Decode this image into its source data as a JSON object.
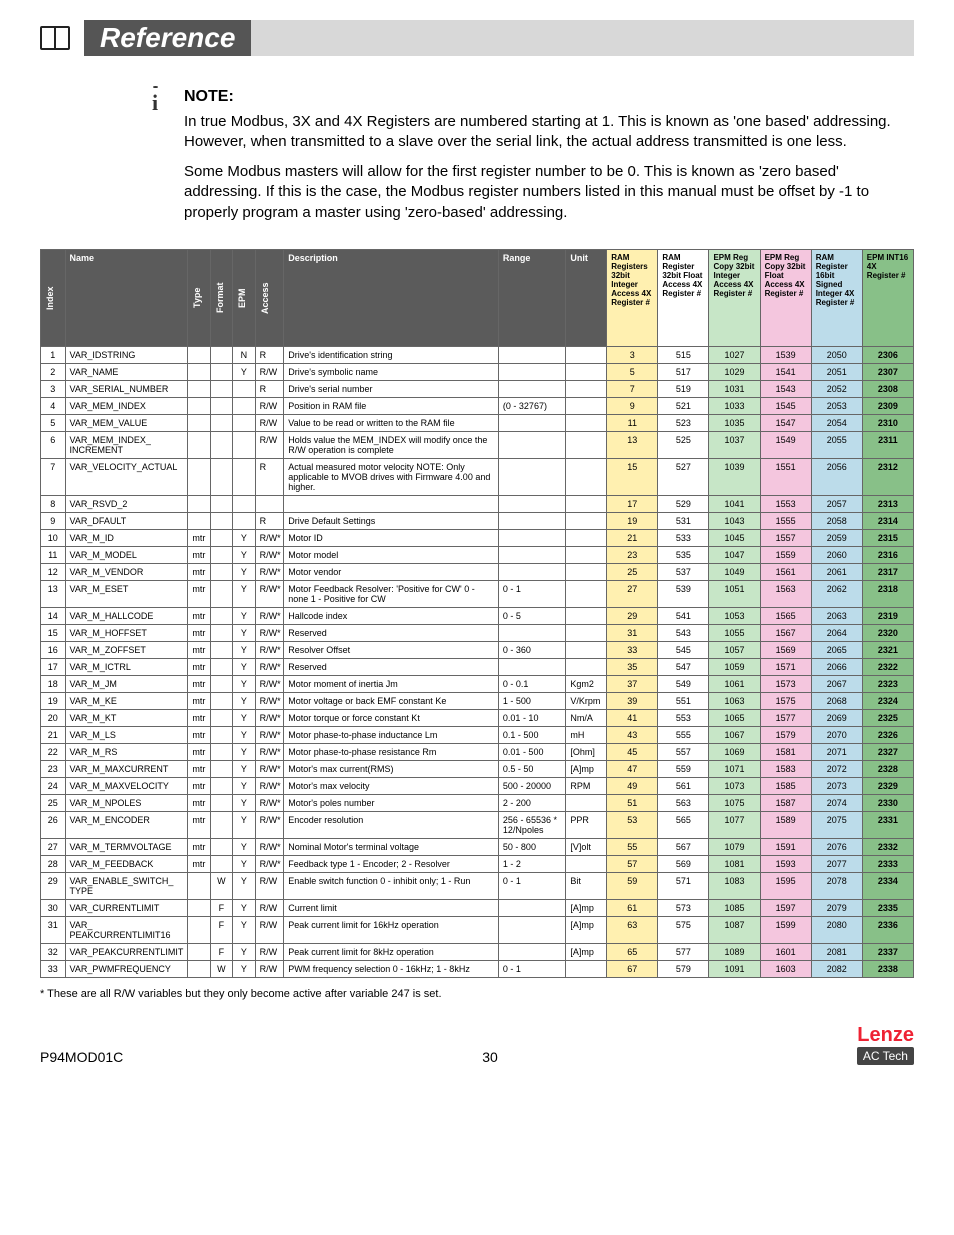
{
  "header": {
    "title": "Reference"
  },
  "note": {
    "label": "NOTE:",
    "p1": "In true Modbus, 3X and 4X Registers are numbered starting at 1. This is known as 'one based' addressing. However, when transmitted to a slave over the serial link, the actual address transmitted is one less.",
    "p2": "Some Modbus masters will allow for the first register number to be 0. This is known as 'zero based' addressing. If this is the case, the Modbus register numbers listed in this manual must be offset by -1 to properly program a master using 'zero-based' addressing."
  },
  "columns": {
    "index": "Index",
    "name": "Name",
    "type": "Type",
    "format": "Format",
    "epm": "EPM",
    "access": "Access",
    "desc": "Description",
    "range": "Range",
    "unit": "Unit",
    "r1": "RAM Registers 32bit Integer Access 4X Register #",
    "r2": "RAM Register 32bit Float Access 4X Register #",
    "r3": "EPM Reg Copy 32bit Integer Access 4X Register #",
    "r4": "EPM Reg Copy 32bit Float Access 4X Register #",
    "r5": "RAM Register 16bit Signed Integer 4X Register #",
    "r6": "EPM INT16 4X Register #"
  },
  "colors": {
    "header_bg": "#5b5b5b",
    "header_fg": "#ffffff",
    "ram_int": "#fff0b0",
    "ram_float": "#ffffff",
    "epm_int": "#c7e6c7",
    "epm_float": "#f4c6de",
    "ram16": "#bcdcea",
    "epm16": "#88c088"
  },
  "rows": [
    {
      "i": "1",
      "name": "VAR_IDSTRING",
      "type": "",
      "fmt": "",
      "epm": "N",
      "acc": "R",
      "desc": "Drive's identification string",
      "range": "",
      "unit": "",
      "r1": "3",
      "r2": "515",
      "r3": "1027",
      "r4": "1539",
      "r5": "2050",
      "r6": "2306"
    },
    {
      "i": "2",
      "name": "VAR_NAME",
      "type": "",
      "fmt": "",
      "epm": "Y",
      "acc": "R/W",
      "desc": "Drive's symbolic name",
      "range": "",
      "unit": "",
      "r1": "5",
      "r2": "517",
      "r3": "1029",
      "r4": "1541",
      "r5": "2051",
      "r6": "2307"
    },
    {
      "i": "3",
      "name": "VAR_SERIAL_NUMBER",
      "type": "",
      "fmt": "",
      "epm": "",
      "acc": "R",
      "desc": "Drive's serial number",
      "range": "",
      "unit": "",
      "r1": "7",
      "r2": "519",
      "r3": "1031",
      "r4": "1543",
      "r5": "2052",
      "r6": "2308"
    },
    {
      "i": "4",
      "name": "VAR_MEM_INDEX",
      "type": "",
      "fmt": "",
      "epm": "",
      "acc": "R/W",
      "desc": "Position in RAM file",
      "range": "(0 - 32767)",
      "unit": "",
      "r1": "9",
      "r2": "521",
      "r3": "1033",
      "r4": "1545",
      "r5": "2053",
      "r6": "2309"
    },
    {
      "i": "5",
      "name": "VAR_MEM_VALUE",
      "type": "",
      "fmt": "",
      "epm": "",
      "acc": "R/W",
      "desc": "Value to be read or written to the RAM file",
      "range": "",
      "unit": "",
      "r1": "11",
      "r2": "523",
      "r3": "1035",
      "r4": "1547",
      "r5": "2054",
      "r6": "2310"
    },
    {
      "i": "6",
      "name": "VAR_MEM_INDEX_ INCREMENT",
      "type": "",
      "fmt": "",
      "epm": "",
      "acc": "R/W",
      "desc": "Holds value the MEM_INDEX will modify once the R/W operation is complete",
      "range": "",
      "unit": "",
      "r1": "13",
      "r2": "525",
      "r3": "1037",
      "r4": "1549",
      "r5": "2055",
      "r6": "2311"
    },
    {
      "i": "7",
      "name": "VAR_VELOCITY_ACTUAL",
      "type": "",
      "fmt": "",
      "epm": "",
      "acc": "R",
      "desc": "Actual measured motor velocity NOTE: Only applicable to MVOB drives with Firmware 4.00 and higher.",
      "range": "",
      "unit": "",
      "r1": "15",
      "r2": "527",
      "r3": "1039",
      "r4": "1551",
      "r5": "2056",
      "r6": "2312"
    },
    {
      "i": "8",
      "name": "VAR_RSVD_2",
      "type": "",
      "fmt": "",
      "epm": "",
      "acc": "",
      "desc": "",
      "range": "",
      "unit": "",
      "r1": "17",
      "r2": "529",
      "r3": "1041",
      "r4": "1553",
      "r5": "2057",
      "r6": "2313"
    },
    {
      "i": "9",
      "name": "VAR_DFAULT",
      "type": "",
      "fmt": "",
      "epm": "",
      "acc": "R",
      "desc": "Drive Default Settings",
      "range": "",
      "unit": "",
      "r1": "19",
      "r2": "531",
      "r3": "1043",
      "r4": "1555",
      "r5": "2058",
      "r6": "2314"
    },
    {
      "i": "10",
      "name": "VAR_M_ID",
      "type": "mtr",
      "fmt": "",
      "epm": "Y",
      "acc": "R/W*",
      "desc": "Motor ID",
      "range": "",
      "unit": "",
      "r1": "21",
      "r2": "533",
      "r3": "1045",
      "r4": "1557",
      "r5": "2059",
      "r6": "2315"
    },
    {
      "i": "11",
      "name": "VAR_M_MODEL",
      "type": "mtr",
      "fmt": "",
      "epm": "Y",
      "acc": "R/W*",
      "desc": "Motor model",
      "range": "",
      "unit": "",
      "r1": "23",
      "r2": "535",
      "r3": "1047",
      "r4": "1559",
      "r5": "2060",
      "r6": "2316"
    },
    {
      "i": "12",
      "name": "VAR_M_VENDOR",
      "type": "mtr",
      "fmt": "",
      "epm": "Y",
      "acc": "R/W*",
      "desc": "Motor vendor",
      "range": "",
      "unit": "",
      "r1": "25",
      "r2": "537",
      "r3": "1049",
      "r4": "1561",
      "r5": "2061",
      "r6": "2317"
    },
    {
      "i": "13",
      "name": "VAR_M_ESET",
      "type": "mtr",
      "fmt": "",
      "epm": "Y",
      "acc": "R/W*",
      "desc": "Motor Feedback Resolver: 'Positive for CW' 0 - none 1 - Positive for CW",
      "range": "0 - 1",
      "unit": "",
      "r1": "27",
      "r2": "539",
      "r3": "1051",
      "r4": "1563",
      "r5": "2062",
      "r6": "2318"
    },
    {
      "i": "14",
      "name": "VAR_M_HALLCODE",
      "type": "mtr",
      "fmt": "",
      "epm": "Y",
      "acc": "R/W*",
      "desc": "Hallcode index",
      "range": "0 - 5",
      "unit": "",
      "r1": "29",
      "r2": "541",
      "r3": "1053",
      "r4": "1565",
      "r5": "2063",
      "r6": "2319"
    },
    {
      "i": "15",
      "name": "VAR_M_HOFFSET",
      "type": "mtr",
      "fmt": "",
      "epm": "Y",
      "acc": "R/W*",
      "desc": "Reserved",
      "range": "",
      "unit": "",
      "r1": "31",
      "r2": "543",
      "r3": "1055",
      "r4": "1567",
      "r5": "2064",
      "r6": "2320"
    },
    {
      "i": "16",
      "name": "VAR_M_ZOFFSET",
      "type": "mtr",
      "fmt": "",
      "epm": "Y",
      "acc": "R/W*",
      "desc": "Resolver Offset",
      "range": "0 - 360",
      "unit": "",
      "r1": "33",
      "r2": "545",
      "r3": "1057",
      "r4": "1569",
      "r5": "2065",
      "r6": "2321"
    },
    {
      "i": "17",
      "name": "VAR_M_ICTRL",
      "type": "mtr",
      "fmt": "",
      "epm": "Y",
      "acc": "R/W*",
      "desc": "Reserved",
      "range": "",
      "unit": "",
      "r1": "35",
      "r2": "547",
      "r3": "1059",
      "r4": "1571",
      "r5": "2066",
      "r6": "2322"
    },
    {
      "i": "18",
      "name": "VAR_M_JM",
      "type": "mtr",
      "fmt": "",
      "epm": "Y",
      "acc": "R/W*",
      "desc": "Motor moment of inertia Jm",
      "range": "0 - 0.1",
      "unit": "Kgm2",
      "r1": "37",
      "r2": "549",
      "r3": "1061",
      "r4": "1573",
      "r5": "2067",
      "r6": "2323"
    },
    {
      "i": "19",
      "name": "VAR_M_KE",
      "type": "mtr",
      "fmt": "",
      "epm": "Y",
      "acc": "R/W*",
      "desc": "Motor voltage or back EMF constant Ke",
      "range": "1 - 500",
      "unit": "V/Krpm",
      "r1": "39",
      "r2": "551",
      "r3": "1063",
      "r4": "1575",
      "r5": "2068",
      "r6": "2324"
    },
    {
      "i": "20",
      "name": "VAR_M_KT",
      "type": "mtr",
      "fmt": "",
      "epm": "Y",
      "acc": "R/W*",
      "desc": "Motor torque or force constant Kt",
      "range": "0.01 - 10",
      "unit": "Nm/A",
      "r1": "41",
      "r2": "553",
      "r3": "1065",
      "r4": "1577",
      "r5": "2069",
      "r6": "2325"
    },
    {
      "i": "21",
      "name": "VAR_M_LS",
      "type": "mtr",
      "fmt": "",
      "epm": "Y",
      "acc": "R/W*",
      "desc": "Motor phase-to-phase inductance Lm",
      "range": "0.1 - 500",
      "unit": "mH",
      "r1": "43",
      "r2": "555",
      "r3": "1067",
      "r4": "1579",
      "r5": "2070",
      "r6": "2326"
    },
    {
      "i": "22",
      "name": "VAR_M_RS",
      "type": "mtr",
      "fmt": "",
      "epm": "Y",
      "acc": "R/W*",
      "desc": "Motor phase-to-phase resistance Rm",
      "range": "0.01 - 500",
      "unit": "[Ohm]",
      "r1": "45",
      "r2": "557",
      "r3": "1069",
      "r4": "1581",
      "r5": "2071",
      "r6": "2327"
    },
    {
      "i": "23",
      "name": "VAR_M_MAXCURRENT",
      "type": "mtr",
      "fmt": "",
      "epm": "Y",
      "acc": "R/W*",
      "desc": "Motor's max current(RMS)",
      "range": "0.5 - 50",
      "unit": "[A]mp",
      "r1": "47",
      "r2": "559",
      "r3": "1071",
      "r4": "1583",
      "r5": "2072",
      "r6": "2328"
    },
    {
      "i": "24",
      "name": "VAR_M_MAXVELOCITY",
      "type": "mtr",
      "fmt": "",
      "epm": "Y",
      "acc": "R/W*",
      "desc": "Motor's max velocity",
      "range": "500 - 20000",
      "unit": "RPM",
      "r1": "49",
      "r2": "561",
      "r3": "1073",
      "r4": "1585",
      "r5": "2073",
      "r6": "2329"
    },
    {
      "i": "25",
      "name": "VAR_M_NPOLES",
      "type": "mtr",
      "fmt": "",
      "epm": "Y",
      "acc": "R/W*",
      "desc": "Motor's poles number",
      "range": "2 - 200",
      "unit": "",
      "r1": "51",
      "r2": "563",
      "r3": "1075",
      "r4": "1587",
      "r5": "2074",
      "r6": "2330"
    },
    {
      "i": "26",
      "name": "VAR_M_ENCODER",
      "type": "mtr",
      "fmt": "",
      "epm": "Y",
      "acc": "R/W*",
      "desc": "Encoder resolution",
      "range": "256 - 65536 * 12/Npoles",
      "unit": "PPR",
      "r1": "53",
      "r2": "565",
      "r3": "1077",
      "r4": "1589",
      "r5": "2075",
      "r6": "2331"
    },
    {
      "i": "27",
      "name": "VAR_M_TERMVOLTAGE",
      "type": "mtr",
      "fmt": "",
      "epm": "Y",
      "acc": "R/W*",
      "desc": "Nominal Motor's terminal voltage",
      "range": "50 - 800",
      "unit": "[V]olt",
      "r1": "55",
      "r2": "567",
      "r3": "1079",
      "r4": "1591",
      "r5": "2076",
      "r6": "2332"
    },
    {
      "i": "28",
      "name": "VAR_M_FEEDBACK",
      "type": "mtr",
      "fmt": "",
      "epm": "Y",
      "acc": "R/W*",
      "desc": "Feedback type 1 - Encoder; 2 - Resolver",
      "range": "1 - 2",
      "unit": "",
      "r1": "57",
      "r2": "569",
      "r3": "1081",
      "r4": "1593",
      "r5": "2077",
      "r6": "2333"
    },
    {
      "i": "29",
      "name": "VAR_ENABLE_SWITCH_ TYPE",
      "type": "",
      "fmt": "W",
      "epm": "Y",
      "acc": "R/W",
      "desc": "Enable switch function 0 - inhibit only; 1 - Run",
      "range": "0 - 1",
      "unit": "Bit",
      "r1": "59",
      "r2": "571",
      "r3": "1083",
      "r4": "1595",
      "r5": "2078",
      "r6": "2334"
    },
    {
      "i": "30",
      "name": "VAR_CURRENTLIMIT",
      "type": "",
      "fmt": "F",
      "epm": "Y",
      "acc": "R/W",
      "desc": "Current limit",
      "range": "",
      "unit": "[A]mp",
      "r1": "61",
      "r2": "573",
      "r3": "1085",
      "r4": "1597",
      "r5": "2079",
      "r6": "2335"
    },
    {
      "i": "31",
      "name": "VAR_ PEAKCURRENTLIMIT16",
      "type": "",
      "fmt": "F",
      "epm": "Y",
      "acc": "R/W",
      "desc": "Peak current limit for 16kHz operation",
      "range": "",
      "unit": "[A]mp",
      "r1": "63",
      "r2": "575",
      "r3": "1087",
      "r4": "1599",
      "r5": "2080",
      "r6": "2336"
    },
    {
      "i": "32",
      "name": "VAR_PEAKCURRENTLIMIT",
      "type": "",
      "fmt": "F",
      "epm": "Y",
      "acc": "R/W",
      "desc": "Peak current limit for 8kHz operation",
      "range": "",
      "unit": "[A]mp",
      "r1": "65",
      "r2": "577",
      "r3": "1089",
      "r4": "1601",
      "r5": "2081",
      "r6": "2337"
    },
    {
      "i": "33",
      "name": "VAR_PWMFREQUENCY",
      "type": "",
      "fmt": "W",
      "epm": "Y",
      "acc": "R/W",
      "desc": "PWM frequency selection 0 - 16kHz; 1 - 8kHz",
      "range": "0 - 1",
      "unit": "",
      "r1": "67",
      "r2": "579",
      "r3": "1091",
      "r4": "1603",
      "r5": "2082",
      "r6": "2338"
    }
  ],
  "footnote": "* These are all R/W variables but they only become active after variable 247 is set.",
  "footer": {
    "doc": "P94MOD01C",
    "page": "30",
    "brand": "Lenze",
    "sub": "AC Tech"
  }
}
